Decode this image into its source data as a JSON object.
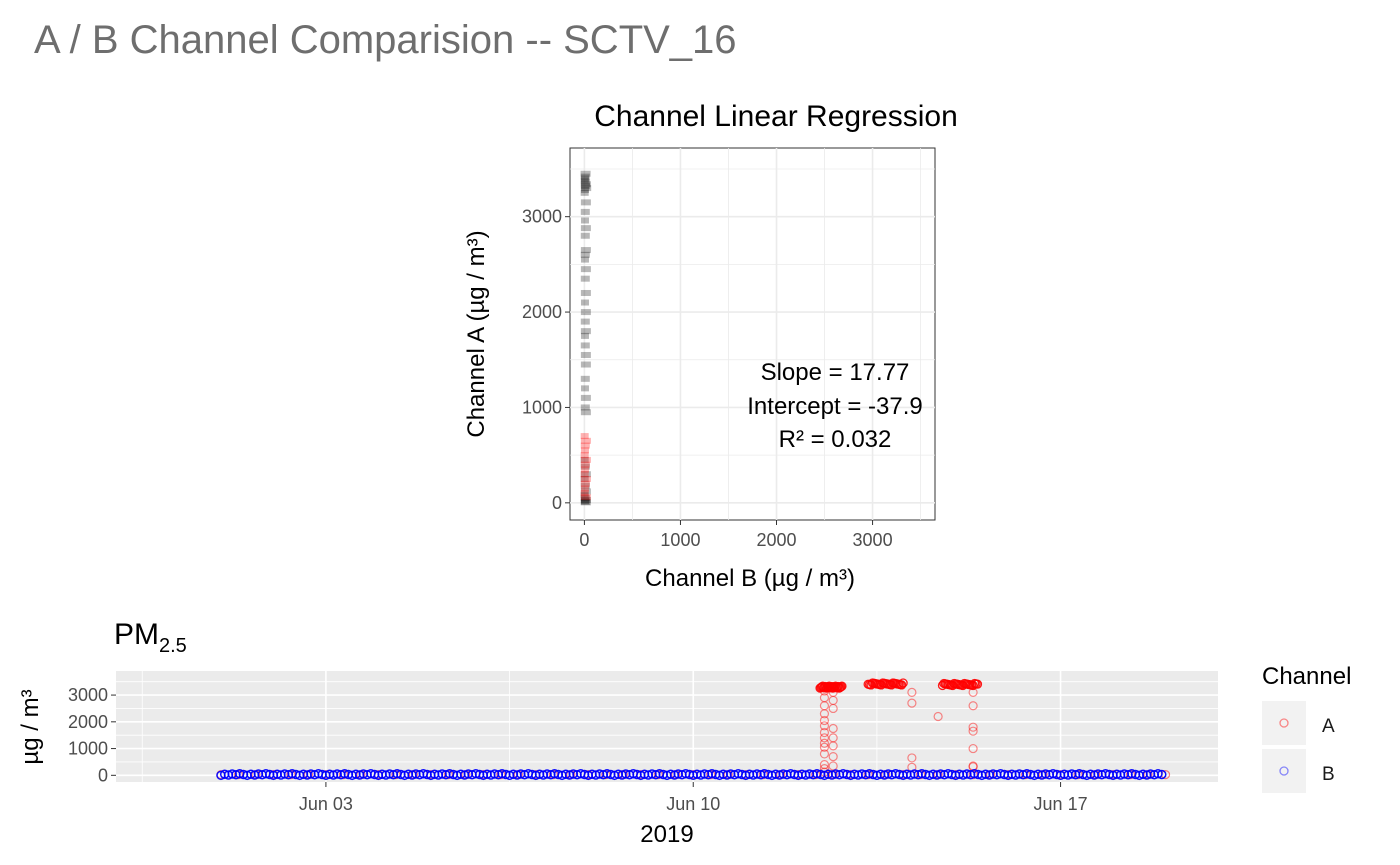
{
  "title": "A / B Channel Comparision -- SCTV_16",
  "colors": {
    "channel_a": "#ff0000",
    "channel_b": "#0000ff",
    "regression_points": "#000000",
    "panel_bg": "#ebebeb",
    "grid": "#ffffff"
  },
  "chart_data": [
    {
      "type": "scatter",
      "title": "Channel Linear Regression",
      "xlabel": "Channel B (µg / m³)",
      "ylabel": "Channel A (µg / m³)",
      "xlim": [
        -150,
        3650
      ],
      "ylim": [
        -180,
        3720
      ],
      "xticks": [
        0,
        1000,
        2000,
        3000
      ],
      "xtick_labels": [
        "0",
        "1000",
        "2000",
        "3000"
      ],
      "yticks": [
        0,
        1000,
        2000,
        3000
      ],
      "ytick_labels": [
        "0",
        "1000",
        "2000",
        "3000"
      ],
      "grid": true,
      "annotation": [
        "Slope = 17.77",
        "Intercept = -37.9",
        "R² = 0.032"
      ],
      "series": [
        {
          "color": "#000000",
          "points": [
            [
              2,
              3450
            ],
            [
              4,
              3420
            ],
            [
              6,
              3400
            ],
            [
              3,
              3380
            ],
            [
              7,
              3360
            ],
            [
              5,
              3340
            ],
            [
              4,
              3320
            ],
            [
              8,
              3300
            ],
            [
              6,
              3280
            ],
            [
              3,
              3250
            ],
            [
              5,
              3150
            ],
            [
              4,
              3050
            ],
            [
              6,
              2960
            ],
            [
              5,
              2880
            ],
            [
              4,
              2800
            ],
            [
              5,
              2650
            ],
            [
              4,
              2600
            ],
            [
              6,
              2550
            ],
            [
              5,
              2450
            ],
            [
              4,
              2350
            ],
            [
              5,
              2200
            ],
            [
              6,
              2100
            ],
            [
              5,
              2000
            ],
            [
              4,
              1900
            ],
            [
              5,
              1800
            ],
            [
              6,
              1750
            ],
            [
              4,
              1650
            ],
            [
              5,
              1550
            ],
            [
              5,
              1450
            ],
            [
              4,
              1300
            ],
            [
              6,
              1200
            ],
            [
              5,
              1100
            ],
            [
              4,
              1000
            ],
            [
              5,
              950
            ],
            [
              3,
              450
            ],
            [
              4,
              380
            ],
            [
              5,
              300
            ],
            [
              3,
              250
            ],
            [
              4,
              180
            ],
            [
              5,
              120
            ],
            [
              3,
              80
            ],
            [
              4,
              50
            ],
            [
              5,
              30
            ],
            [
              6,
              20
            ],
            [
              4,
              10
            ],
            [
              5,
              5
            ]
          ]
        },
        {
          "color": "#ff0000",
          "points": [
            [
              3,
              700
            ],
            [
              5,
              650
            ],
            [
              4,
              600
            ],
            [
              6,
              550
            ],
            [
              3,
              500
            ],
            [
              5,
              450
            ],
            [
              4,
              400
            ],
            [
              6,
              350
            ],
            [
              3,
              300
            ],
            [
              5,
              250
            ],
            [
              4,
              200
            ],
            [
              6,
              150
            ],
            [
              3,
              100
            ],
            [
              5,
              60
            ]
          ]
        }
      ]
    },
    {
      "type": "scatter",
      "title_main": "PM",
      "title_sub": "2.5",
      "xlabel": "2019",
      "ylabel": "µg / m³",
      "x_range_days": [
        "2019-05-30",
        "2019-06-20"
      ],
      "xticks": [
        "2019-06-03",
        "2019-06-10",
        "2019-06-17"
      ],
      "xtick_labels": [
        "Jun 03",
        "Jun 10",
        "Jun 17"
      ],
      "ylim": [
        -250,
        3900
      ],
      "yticks": [
        0,
        1000,
        2000,
        3000
      ],
      "ytick_labels": [
        "0",
        "1000",
        "2000",
        "3000"
      ],
      "grid": true,
      "legend": {
        "title": "Channel",
        "position": "right",
        "entries": [
          "A",
          "B"
        ]
      },
      "series": [
        {
          "name": "A",
          "color": "#ff0000",
          "baseline": {
            "start": "2019-06-01",
            "end": "2019-06-19",
            "value": 25
          },
          "plateaus": [
            {
              "start": "2019-06-12 10:00",
              "end": "2019-06-12 20:00",
              "value": 3300
            },
            {
              "start": "2019-06-13 08:00",
              "end": "2019-06-14 00:00",
              "value": 3420
            },
            {
              "start": "2019-06-14 18:00",
              "end": "2019-06-15 10:00",
              "value": 3400
            }
          ],
          "drops": [
            {
              "x": "2019-06-12 12:00",
              "values": [
                3150,
                2900,
                2600,
                2300,
                2050,
                1850,
                1600,
                1400,
                1200,
                1050,
                800,
                400,
                250,
                120
              ]
            },
            {
              "x": "2019-06-12 16:00",
              "values": [
                3100,
                2800,
                2500,
                1750,
                1400,
                1100,
                700,
                350
              ]
            },
            {
              "x": "2019-06-14 04:00",
              "values": [
                3100,
                2700,
                650,
                300
              ]
            },
            {
              "x": "2019-06-14 16:00",
              "values": [
                2200
              ]
            },
            {
              "x": "2019-06-15 08:00",
              "values": [
                3100,
                2600,
                1800,
                1650,
                1000,
                350,
                320
              ]
            }
          ]
        },
        {
          "name": "B",
          "color": "#0000ff",
          "baseline": {
            "start": "2019-06-01",
            "end": "2019-06-19",
            "value": 20
          }
        }
      ]
    }
  ]
}
